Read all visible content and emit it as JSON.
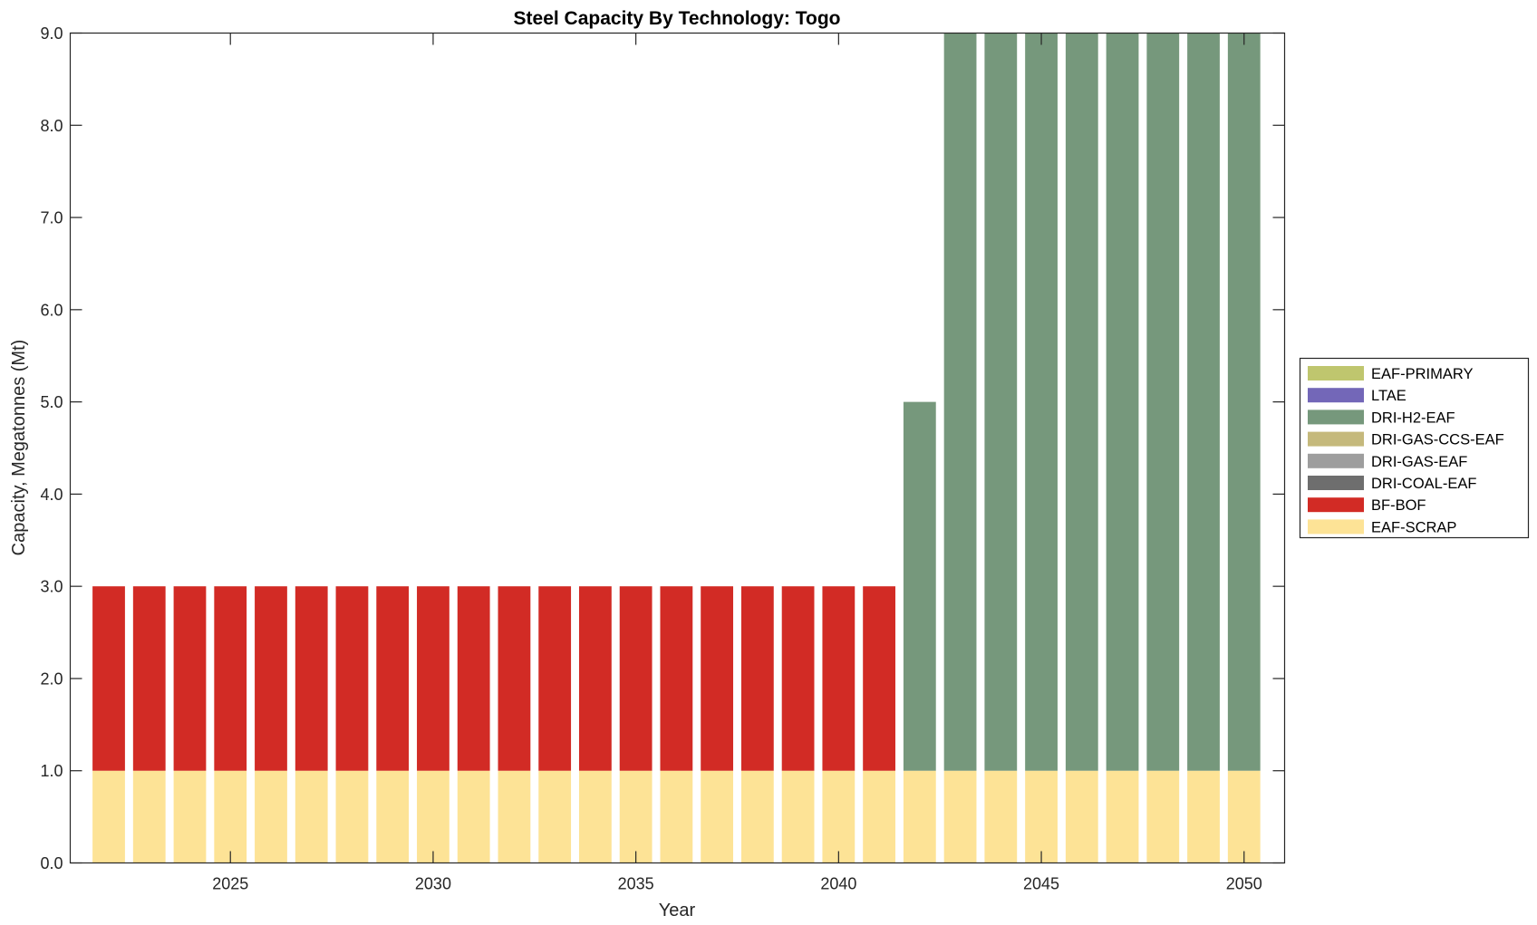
{
  "chart_data": {
    "type": "bar",
    "stacked": true,
    "title": "Steel Capacity By Technology: Togo",
    "xlabel": "Year",
    "ylabel": "Capacity, Megatonnes (Mt)",
    "xlim": [
      2021.05,
      2051
    ],
    "ylim": [
      0,
      9
    ],
    "bar_width": 0.8,
    "grid": false,
    "legend_position": "outside-right",
    "x_ticks": [
      2025,
      2030,
      2035,
      2040,
      2045,
      2050
    ],
    "x_tick_labels": [
      "2025",
      "2030",
      "2035",
      "2040",
      "2045",
      "2050"
    ],
    "y_ticks": [
      0,
      1,
      2,
      3,
      4,
      5,
      6,
      7,
      8,
      9
    ],
    "y_tick_labels": [
      "0.0",
      "1.0",
      "2.0",
      "3.0",
      "4.0",
      "5.0",
      "6.0",
      "7.0",
      "8.0",
      "9.0"
    ],
    "categories": [
      2022,
      2023,
      2024,
      2025,
      2026,
      2027,
      2028,
      2029,
      2030,
      2031,
      2032,
      2033,
      2034,
      2035,
      2036,
      2037,
      2038,
      2039,
      2040,
      2041,
      2042,
      2043,
      2044,
      2045,
      2046,
      2047,
      2048,
      2049,
      2050
    ],
    "series": [
      {
        "name": "EAF-SCRAP",
        "color": "#fde396",
        "values": [
          1,
          1,
          1,
          1,
          1,
          1,
          1,
          1,
          1,
          1,
          1,
          1,
          1,
          1,
          1,
          1,
          1,
          1,
          1,
          1,
          1,
          1,
          1,
          1,
          1,
          1,
          1,
          1,
          1
        ]
      },
      {
        "name": "BF-BOF",
        "color": "#d22b25",
        "values": [
          2,
          2,
          2,
          2,
          2,
          2,
          2,
          2,
          2,
          2,
          2,
          2,
          2,
          2,
          2,
          2,
          2,
          2,
          2,
          2,
          0,
          0,
          0,
          0,
          0,
          0,
          0,
          0,
          0
        ]
      },
      {
        "name": "DRI-COAL-EAF",
        "color": "#6e6e6e",
        "values": [
          0,
          0,
          0,
          0,
          0,
          0,
          0,
          0,
          0,
          0,
          0,
          0,
          0,
          0,
          0,
          0,
          0,
          0,
          0,
          0,
          0,
          0,
          0,
          0,
          0,
          0,
          0,
          0,
          0
        ]
      },
      {
        "name": "DRI-GAS-EAF",
        "color": "#9e9e9e",
        "values": [
          0,
          0,
          0,
          0,
          0,
          0,
          0,
          0,
          0,
          0,
          0,
          0,
          0,
          0,
          0,
          0,
          0,
          0,
          0,
          0,
          0,
          0,
          0,
          0,
          0,
          0,
          0,
          0,
          0
        ]
      },
      {
        "name": "DRI-GAS-CCS-EAF",
        "color": "#c5b97c",
        "values": [
          0,
          0,
          0,
          0,
          0,
          0,
          0,
          0,
          0,
          0,
          0,
          0,
          0,
          0,
          0,
          0,
          0,
          0,
          0,
          0,
          0,
          0,
          0,
          0,
          0,
          0,
          0,
          0,
          0
        ]
      },
      {
        "name": "DRI-H2-EAF",
        "color": "#76987c",
        "values": [
          0,
          0,
          0,
          0,
          0,
          0,
          0,
          0,
          0,
          0,
          0,
          0,
          0,
          0,
          0,
          0,
          0,
          0,
          0,
          0,
          4,
          8,
          8,
          8,
          8,
          8,
          8,
          8,
          8
        ]
      },
      {
        "name": "LTAE",
        "color": "#7367b8",
        "values": [
          0,
          0,
          0,
          0,
          0,
          0,
          0,
          0,
          0,
          0,
          0,
          0,
          0,
          0,
          0,
          0,
          0,
          0,
          0,
          0,
          0,
          0,
          0,
          0,
          0,
          0,
          0,
          0,
          0
        ]
      },
      {
        "name": "EAF-PRIMARY",
        "color": "#bfc66e",
        "values": [
          0,
          0,
          0,
          0,
          0,
          0,
          0,
          0,
          0,
          0,
          0,
          0,
          0,
          0,
          0,
          0,
          0,
          0,
          0,
          0,
          0,
          0,
          0,
          0,
          0,
          0,
          0,
          0,
          0
        ]
      }
    ],
    "legend_order": [
      "EAF-PRIMARY",
      "LTAE",
      "DRI-H2-EAF",
      "DRI-GAS-CCS-EAF",
      "DRI-GAS-EAF",
      "DRI-COAL-EAF",
      "BF-BOF",
      "EAF-SCRAP"
    ]
  }
}
